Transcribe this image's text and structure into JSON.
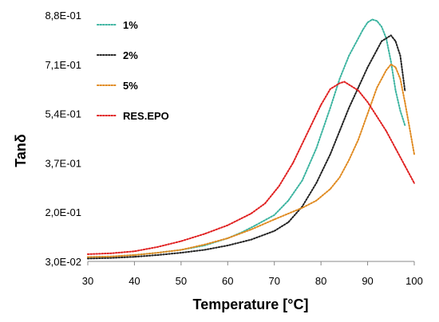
{
  "chart_data": {
    "type": "scatter",
    "title": "",
    "xlabel": "Temperature [°C]",
    "ylabel": "Tanδ",
    "xlim": [
      30,
      100
    ],
    "ylim": [
      0.03,
      0.88
    ],
    "x_ticks": [
      30,
      40,
      50,
      60,
      70,
      80,
      90,
      100
    ],
    "x_tick_labels": [
      "30",
      "40",
      "50",
      "60",
      "70",
      "80",
      "90",
      "100"
    ],
    "y_ticks": [
      0.03,
      0.2,
      0.37,
      0.54,
      0.71,
      0.88
    ],
    "y_tick_labels": [
      "3,0E-02",
      "2,0E-01",
      "3,7E-01",
      "5,4E-01",
      "7,1E-01",
      "8,8E-01"
    ],
    "grid": false,
    "legend_position": "top-left",
    "series": [
      {
        "name": "1%",
        "color": "#3cb4a0",
        "x": [
          30,
          35,
          40,
          45,
          50,
          55,
          60,
          63,
          66,
          70,
          73,
          76,
          79,
          82,
          84,
          86,
          88,
          89,
          90,
          91,
          92,
          93,
          94,
          95,
          96,
          97,
          98
        ],
        "y": [
          0.045,
          0.047,
          0.052,
          0.06,
          0.07,
          0.085,
          0.11,
          0.13,
          0.155,
          0.19,
          0.24,
          0.31,
          0.42,
          0.56,
          0.66,
          0.74,
          0.8,
          0.83,
          0.855,
          0.865,
          0.86,
          0.84,
          0.8,
          0.72,
          0.62,
          0.55,
          0.5
        ]
      },
      {
        "name": "2%",
        "color": "#222222",
        "x": [
          30,
          35,
          40,
          45,
          50,
          55,
          60,
          65,
          70,
          73,
          76,
          79,
          82,
          84,
          86,
          88,
          90,
          92,
          93,
          94,
          95,
          96,
          97,
          98
        ],
        "y": [
          0.04,
          0.042,
          0.046,
          0.052,
          0.06,
          0.07,
          0.085,
          0.105,
          0.135,
          0.165,
          0.22,
          0.3,
          0.4,
          0.48,
          0.56,
          0.63,
          0.7,
          0.76,
          0.79,
          0.8,
          0.81,
          0.79,
          0.74,
          0.62
        ]
      },
      {
        "name": "5%",
        "color": "#e08a20",
        "x": [
          30,
          35,
          40,
          45,
          50,
          55,
          60,
          65,
          70,
          73,
          76,
          79,
          82,
          84,
          86,
          88,
          90,
          92,
          94,
          95,
          96,
          97,
          98,
          99,
          100
        ],
        "y": [
          0.045,
          0.047,
          0.052,
          0.06,
          0.07,
          0.088,
          0.11,
          0.14,
          0.175,
          0.195,
          0.215,
          0.24,
          0.28,
          0.32,
          0.38,
          0.45,
          0.54,
          0.63,
          0.69,
          0.71,
          0.7,
          0.66,
          0.58,
          0.49,
          0.4
        ]
      },
      {
        "name": "RES.EPO",
        "color": "#e02020",
        "x": [
          30,
          35,
          40,
          45,
          50,
          55,
          60,
          65,
          68,
          71,
          74,
          77,
          80,
          82,
          84,
          85,
          86,
          88,
          90,
          92,
          94,
          96,
          98,
          100
        ],
        "y": [
          0.055,
          0.058,
          0.065,
          0.08,
          0.1,
          0.125,
          0.155,
          0.195,
          0.23,
          0.29,
          0.37,
          0.47,
          0.57,
          0.625,
          0.645,
          0.65,
          0.64,
          0.62,
          0.58,
          0.53,
          0.48,
          0.42,
          0.36,
          0.3
        ]
      }
    ]
  }
}
